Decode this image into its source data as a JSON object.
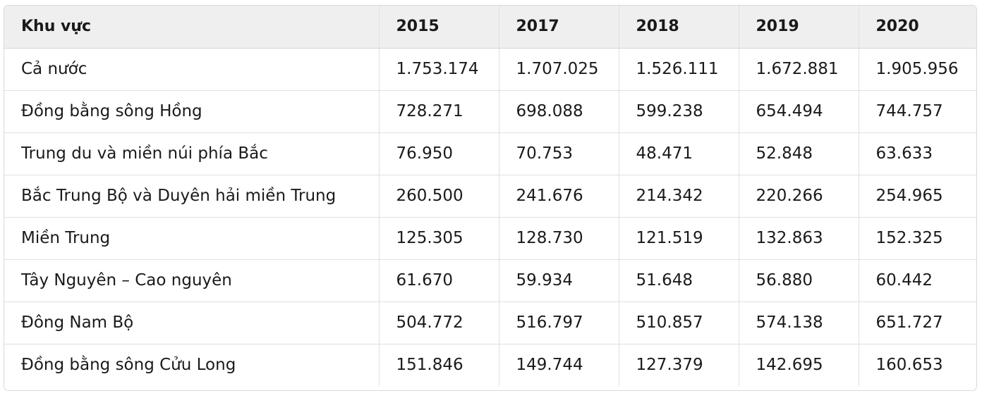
{
  "table": {
    "headers": [
      "Khu vực",
      "2015",
      "2017",
      "2018",
      "2019",
      "2020"
    ],
    "rows": [
      [
        "Cả nước",
        "1.753.174",
        "1.707.025",
        "1.526.111",
        "1.672.881",
        "1.905.956"
      ],
      [
        "Đồng bằng sông Hồng",
        "728.271",
        "698.088",
        "599.238",
        "654.494",
        "744.757"
      ],
      [
        "Trung du và miền núi phía Bắc",
        "76.950",
        "70.753",
        "48.471",
        "52.848",
        "63.633"
      ],
      [
        "Bắc Trung Bộ và Duyên hải miền Trung",
        "260.500",
        "241.676",
        "214.342",
        "220.266",
        "254.965"
      ],
      [
        "Miền Trung",
        "125.305",
        "128.730",
        "121.519",
        "132.863",
        "152.325"
      ],
      [
        "Tây Nguyên – Cao nguyên",
        "61.670",
        "59.934",
        "51.648",
        "56.880",
        "60.442"
      ],
      [
        "Đông Nam Bộ",
        "504.772",
        "516.797",
        "510.857",
        "574.138",
        "651.727"
      ],
      [
        "Đồng bằng sông Cửu Long",
        "151.846",
        "149.744",
        "127.379",
        "142.695",
        "160.653"
      ]
    ]
  }
}
